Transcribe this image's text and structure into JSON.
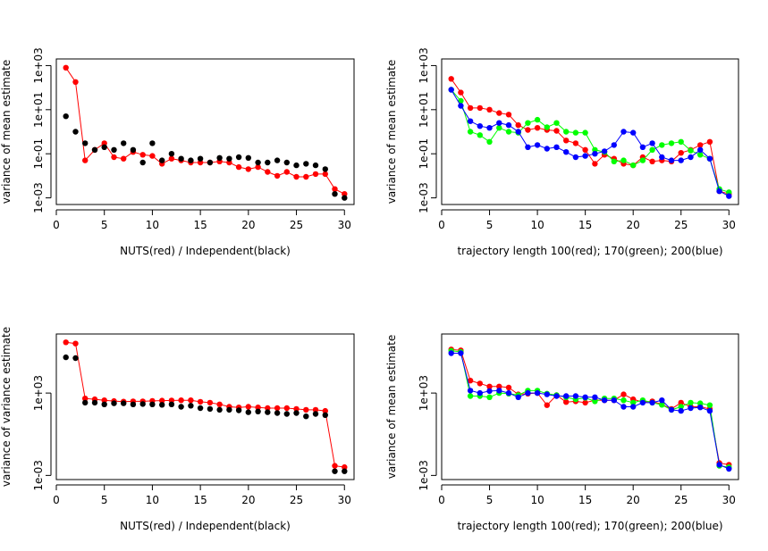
{
  "chart_data": [
    {
      "type": "scatter",
      "xlabel": "NUTS(red) / Independent(black)",
      "ylabel": "variance of mean estimate",
      "yscale": "log",
      "xlim": [
        0,
        31
      ],
      "ylim": [
        0.0005,
        2000
      ],
      "xticks": [
        0,
        5,
        10,
        15,
        20,
        25,
        30
      ],
      "yticks": [
        {
          "value": 0.001,
          "label": "1e-03"
        },
        {
          "value": 0.1,
          "label": "1e-01"
        },
        {
          "value": 10,
          "label": "1e+01"
        },
        {
          "value": 1000,
          "label": "1e+03"
        }
      ],
      "grid": false,
      "x": [
        1,
        2,
        3,
        4,
        5,
        6,
        7,
        8,
        9,
        10,
        11,
        12,
        13,
        14,
        15,
        16,
        17,
        18,
        19,
        20,
        21,
        22,
        23,
        24,
        25,
        26,
        27,
        28,
        29,
        30
      ],
      "series": [
        {
          "color": "#ff0000",
          "connected": true,
          "values": [
            800,
            180,
            0.05,
            0.15,
            0.3,
            0.07,
            0.06,
            0.12,
            0.09,
            0.08,
            0.035,
            0.06,
            0.05,
            0.04,
            0.04,
            0.04,
            0.045,
            0.04,
            0.025,
            0.02,
            0.025,
            0.015,
            0.01,
            0.015,
            0.009,
            0.009,
            0.012,
            0.012,
            0.0025,
            0.0015
          ]
        },
        {
          "color": "#000000",
          "connected": false,
          "values": [
            5,
            1,
            0.3,
            0.15,
            0.2,
            0.15,
            0.3,
            0.15,
            0.04,
            0.3,
            0.05,
            0.1,
            0.06,
            0.05,
            0.06,
            0.04,
            0.065,
            0.06,
            0.07,
            0.065,
            0.04,
            0.04,
            0.05,
            0.04,
            0.03,
            0.035,
            0.03,
            0.02,
            0.0015,
            0.001
          ]
        }
      ]
    },
    {
      "type": "scatter",
      "xlabel": "trajectory length 100(red); 170(green); 200(blue)",
      "ylabel": "variance of mean estimate",
      "yscale": "log",
      "xlim": [
        0,
        31
      ],
      "ylim": [
        0.0005,
        2000
      ],
      "xticks": [
        0,
        5,
        10,
        15,
        20,
        25,
        30
      ],
      "yticks": [
        {
          "value": 0.001,
          "label": "1e-03"
        },
        {
          "value": 0.1,
          "label": "1e-01"
        },
        {
          "value": 10,
          "label": "1e+01"
        },
        {
          "value": 1000,
          "label": "1e+03"
        }
      ],
      "grid": false,
      "x": [
        1,
        2,
        3,
        4,
        5,
        6,
        7,
        8,
        9,
        10,
        11,
        12,
        13,
        14,
        15,
        16,
        17,
        18,
        19,
        20,
        21,
        22,
        23,
        24,
        25,
        26,
        27,
        28,
        29,
        30
      ],
      "series": [
        {
          "color": "#ff0000",
          "connected": true,
          "values": [
            250,
            60,
            12,
            12,
            10,
            7,
            6,
            2,
            1.2,
            1.5,
            1.2,
            1.1,
            0.4,
            0.3,
            0.15,
            0.035,
            0.09,
            0.06,
            0.035,
            0.03,
            0.07,
            0.045,
            0.05,
            0.045,
            0.11,
            0.15,
            0.25,
            0.35,
            0.002,
            0.0015
          ]
        },
        {
          "color": "#00ff00",
          "connected": true,
          "values": [
            80,
            25,
            1,
            0.7,
            0.35,
            1.5,
            1,
            0.9,
            2.5,
            3.5,
            1.6,
            2.5,
            1,
            0.9,
            0.9,
            0.15,
            0.12,
            0.045,
            0.05,
            0.03,
            0.05,
            0.15,
            0.25,
            0.3,
            0.35,
            0.14,
            0.09,
            0.06,
            0.0025,
            0.0018
          ]
        },
        {
          "color": "#0000ff",
          "connected": true,
          "values": [
            80,
            15,
            3,
            1.8,
            1.5,
            2.5,
            2,
            1,
            0.2,
            0.25,
            0.17,
            0.2,
            0.12,
            0.07,
            0.08,
            0.1,
            0.13,
            0.25,
            1,
            0.9,
            0.2,
            0.3,
            0.07,
            0.05,
            0.05,
            0.07,
            0.15,
            0.06,
            0.002,
            0.0012
          ]
        }
      ]
    },
    {
      "type": "scatter",
      "xlabel": "NUTS(red) / Independent(black)",
      "ylabel": "variance of variance estimate",
      "yscale": "log",
      "xlim": [
        0,
        31
      ],
      "ylim": [
        0.0005,
        20000000
      ],
      "xticks": [
        0,
        5,
        10,
        15,
        20,
        25,
        30
      ],
      "yticks": [
        {
          "value": 0.001,
          "label": "1e-03"
        },
        {
          "value": 1000,
          "label": "1e+03"
        }
      ],
      "grid": false,
      "x": [
        1,
        2,
        3,
        4,
        5,
        6,
        7,
        8,
        9,
        10,
        11,
        12,
        13,
        14,
        15,
        16,
        17,
        18,
        19,
        20,
        21,
        22,
        23,
        24,
        25,
        26,
        27,
        28,
        29,
        30
      ],
      "series": [
        {
          "color": "#ff0000",
          "connected": true,
          "values": [
            5000000,
            4000000,
            400,
            350,
            300,
            260,
            240,
            250,
            250,
            270,
            280,
            290,
            300,
            300,
            230,
            200,
            150,
            100,
            90,
            100,
            90,
            80,
            80,
            80,
            70,
            60,
            60,
            50,
            0.005,
            0.004
          ]
        },
        {
          "color": "#000000",
          "connected": false,
          "values": [
            400000,
            350000,
            200,
            200,
            150,
            180,
            180,
            150,
            160,
            150,
            140,
            150,
            100,
            120,
            80,
            70,
            60,
            60,
            55,
            40,
            45,
            40,
            35,
            30,
            35,
            20,
            30,
            25,
            0.002,
            0.002
          ]
        }
      ]
    },
    {
      "type": "scatter",
      "xlabel": "trajectory length 100(red); 170(green); 200(blue)",
      "ylabel": "variance of mean estimate",
      "yscale": "log",
      "xlim": [
        0,
        31
      ],
      "ylim": [
        0.0005,
        20000000
      ],
      "xticks": [
        0,
        5,
        10,
        15,
        20,
        25,
        30
      ],
      "yticks": [
        {
          "value": 0.001,
          "label": "1e-03"
        },
        {
          "value": 1000,
          "label": "1e+03"
        }
      ],
      "grid": false,
      "x": [
        1,
        2,
        3,
        4,
        5,
        6,
        7,
        8,
        9,
        10,
        11,
        12,
        13,
        14,
        15,
        16,
        17,
        18,
        19,
        20,
        21,
        22,
        23,
        24,
        25,
        26,
        27,
        28,
        29,
        30
      ],
      "series": [
        {
          "color": "#ff0000",
          "connected": true,
          "values": [
            1500000,
            1300000,
            8000,
            5000,
            3000,
            3000,
            2500,
            800,
            900,
            1000,
            130,
            700,
            220,
            250,
            200,
            300,
            300,
            300,
            800,
            350,
            220,
            250,
            150,
            70,
            200,
            100,
            100,
            70,
            0.008,
            0.006
          ]
        },
        {
          "color": "#00ff00",
          "connected": true,
          "values": [
            1200000,
            1000000,
            600,
            600,
            500,
            1000,
            900,
            700,
            1500,
            1500,
            900,
            700,
            500,
            350,
            450,
            250,
            400,
            400,
            300,
            200,
            300,
            200,
            140,
            60,
            100,
            200,
            180,
            130,
            0.005,
            0.004
          ]
        },
        {
          "color": "#0000ff",
          "connected": true,
          "values": [
            800000,
            800000,
            1500,
            1000,
            1400,
            1500,
            1000,
            500,
            1000,
            1000,
            800,
            600,
            600,
            600,
            500,
            500,
            300,
            300,
            100,
            100,
            200,
            200,
            300,
            60,
            50,
            80,
            90,
            50,
            0.006,
            0.003
          ]
        }
      ]
    }
  ]
}
